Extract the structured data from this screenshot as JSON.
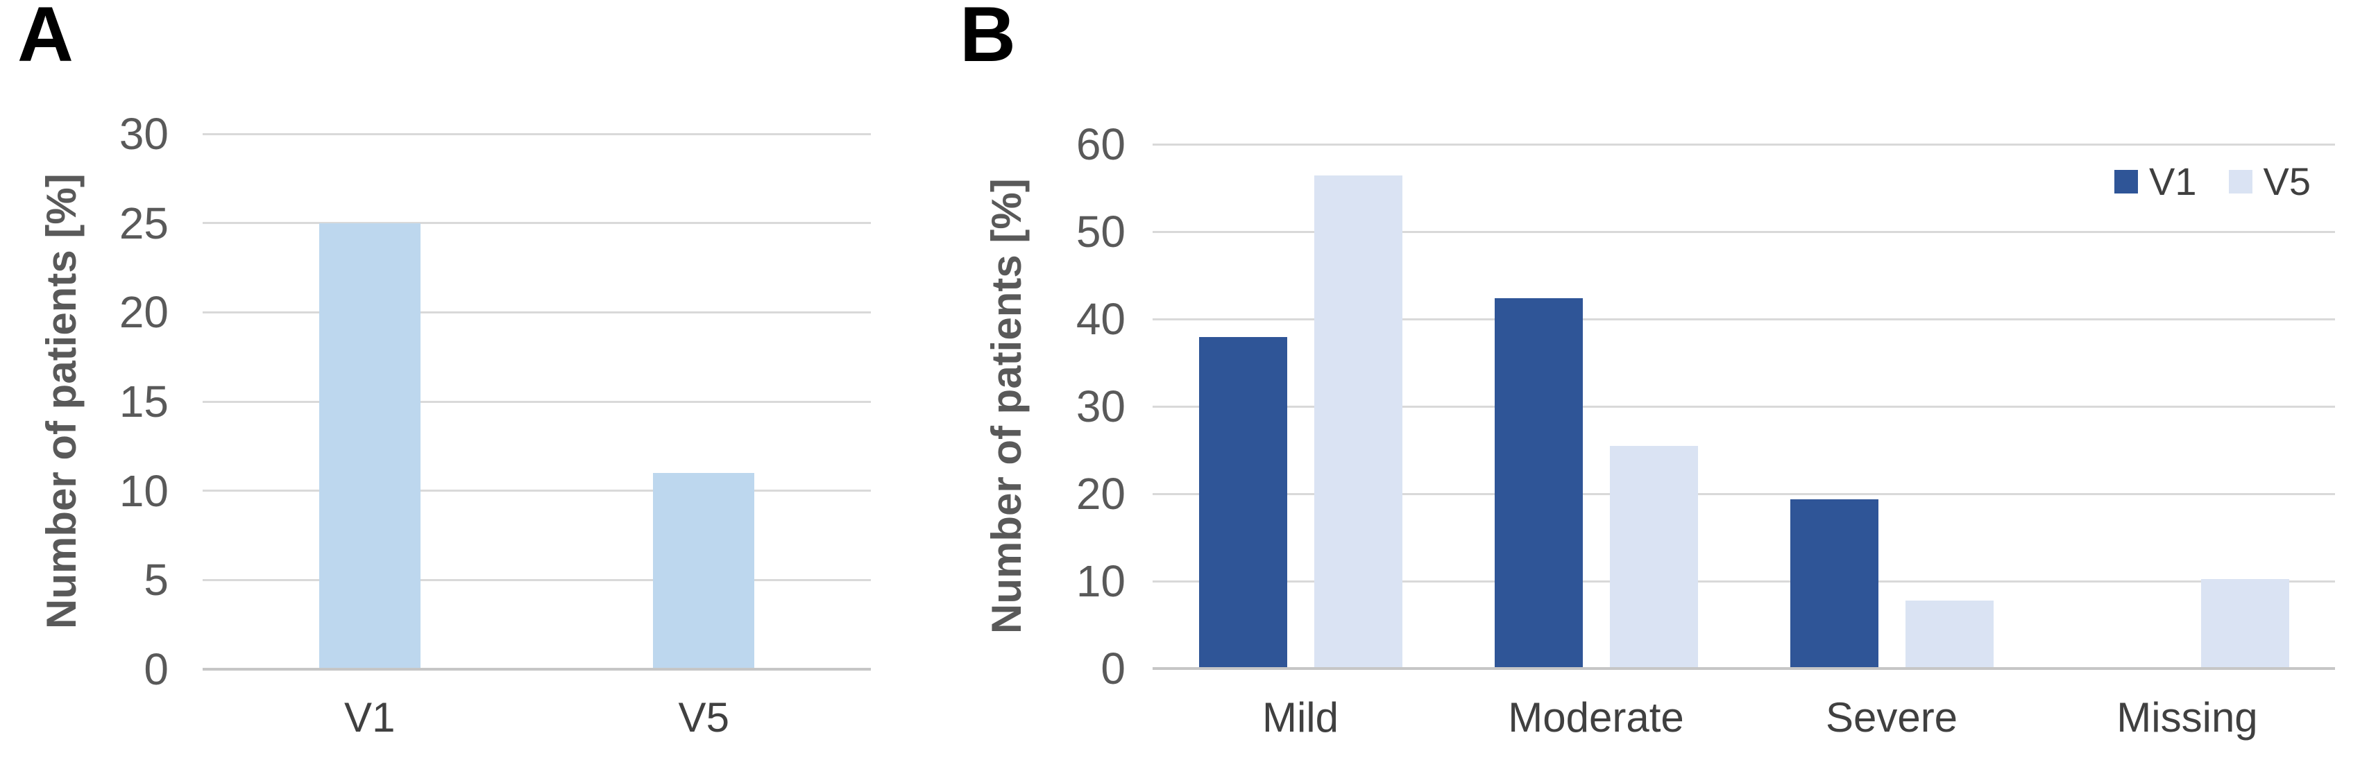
{
  "panels": [
    {
      "label": "A"
    },
    {
      "label": "B"
    }
  ],
  "chart_data": [
    {
      "panel": "A",
      "type": "bar",
      "title": "",
      "xlabel": "",
      "ylabel": "Number of patients [%]",
      "categories": [
        "V1",
        "V5"
      ],
      "series": [
        {
          "name": "",
          "color": "#BDD7EE",
          "values": [
            25,
            11
          ]
        }
      ],
      "ylim": [
        0,
        30
      ],
      "ytick_step": 5,
      "grid": true,
      "legend": false
    },
    {
      "panel": "B",
      "type": "bar",
      "title": "",
      "xlabel": "",
      "ylabel": "Number of patients [%]",
      "categories": [
        "Mild",
        "Moderate",
        "Severe",
        "Missing"
      ],
      "series": [
        {
          "name": "V1",
          "color": "#2F5597",
          "values": [
            37.9,
            42.4,
            19.4,
            0
          ]
        },
        {
          "name": "V5",
          "color": "#DAE3F3",
          "values": [
            56.4,
            25.5,
            7.8,
            10.2
          ]
        }
      ],
      "ylim": [
        0,
        60
      ],
      "ytick_step": 10,
      "grid": true,
      "legend": true,
      "legend_position": "top-right",
      "legend_entries": [
        "V1",
        "V5"
      ]
    }
  ],
  "colors": {
    "grid": "#D9D9D9",
    "axis_line": "#C6C6C6",
    "tick_text": "#595959",
    "axis_title_text": "#595959",
    "category_text": "#404040",
    "panel_label_text": "#000000",
    "background": "#FFFFFF"
  }
}
